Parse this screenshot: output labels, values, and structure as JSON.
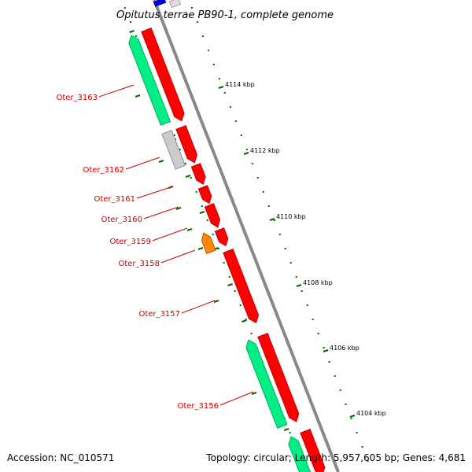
{
  "title": "Opitutus terrae PB90-1, complete genome",
  "footer": {
    "accession": "Accession: NC_010571",
    "summary": "Topology: circular; Length: 5,957,605 bp; Genes: 4,681"
  },
  "colors": {
    "cds_forward": "#ff0000",
    "cds_reverse": "#00ee88",
    "cds_other": "#cccccc",
    "cds_orange": "#ff8800",
    "cds_blue": "#0000dd",
    "backbone": "#999999",
    "tick": "#006600",
    "gene_label": "#cc0000"
  },
  "ticks": [
    "4114 kbp",
    "4112 kbp",
    "4110 kbp",
    "4108 kbp",
    "4106 kbp",
    "4104 kbp"
  ],
  "gene_labels": [
    "Oter_3163",
    "Oter_3162",
    "Oter_3161",
    "Oter_3160",
    "Oter_3159",
    "Oter_3158",
    "Oter_3157",
    "Oter_3156"
  ]
}
